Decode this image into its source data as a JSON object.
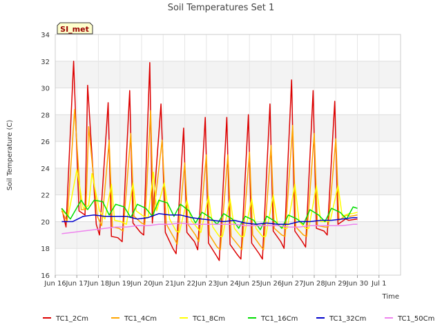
{
  "chart_data": {
    "type": "line",
    "title": "Soil Temperatures Set 1",
    "xlabel": "Time",
    "ylabel": "Soil Temperature (C)",
    "badge": "SI_met",
    "ylim": [
      16,
      34
    ],
    "yticks": [
      16,
      18,
      20,
      22,
      24,
      26,
      28,
      30,
      32,
      34
    ],
    "xlim": [
      15.0,
      31.0
    ],
    "xticks": [
      {
        "x": 15,
        "label": "Jun 16"
      },
      {
        "x": 16,
        "label": "Jun 17"
      },
      {
        "x": 17,
        "label": "Jun 18"
      },
      {
        "x": 18,
        "label": "Jun 19"
      },
      {
        "x": 19,
        "label": "Jun 20"
      },
      {
        "x": 20,
        "label": "Jun 21"
      },
      {
        "x": 21,
        "label": "Jun 22"
      },
      {
        "x": 22,
        "label": "Jun 23"
      },
      {
        "x": 23,
        "label": "Jun 24"
      },
      {
        "x": 24,
        "label": "Jun 25"
      },
      {
        "x": 25,
        "label": "Jun 26"
      },
      {
        "x": 26,
        "label": "Jun 27"
      },
      {
        "x": 27,
        "label": "Jun 28"
      },
      {
        "x": 28,
        "label": "Jun 29"
      },
      {
        "x": 29,
        "label": "Jun 30"
      },
      {
        "x": 30,
        "label": "Jul 1"
      }
    ],
    "grid": true,
    "legend_position": "bottom",
    "series": [
      {
        "name": "TC1_2Cm",
        "color": "#dd0000",
        "x": [
          15.3,
          15.5,
          15.85,
          16.1,
          16.38,
          16.5,
          16.9,
          17.05,
          17.45,
          17.6,
          17.9,
          18.1,
          18.45,
          18.6,
          18.95,
          19.1,
          19.38,
          19.5,
          19.9,
          20.1,
          20.45,
          20.6,
          20.95,
          21.1,
          21.45,
          21.6,
          21.95,
          22.1,
          22.45,
          22.6,
          22.95,
          23.1,
          23.45,
          23.6,
          23.95,
          24.1,
          24.45,
          24.6,
          24.95,
          25.1,
          25.45,
          25.6,
          25.95,
          26.1,
          26.45,
          26.6,
          26.95,
          27.1,
          27.45,
          27.6,
          27.95,
          28.1,
          28.45,
          28.6,
          29.0
        ],
        "y": [
          21.0,
          19.6,
          32.0,
          20.8,
          20.5,
          30.2,
          19.8,
          19.0,
          28.9,
          18.9,
          18.8,
          18.5,
          29.8,
          19.9,
          19.2,
          19.0,
          31.9,
          19.9,
          28.8,
          19.2,
          18.0,
          17.6,
          27.0,
          19.2,
          18.5,
          17.9,
          27.8,
          18.4,
          17.5,
          17.1,
          27.8,
          18.3,
          17.5,
          17.2,
          28.0,
          18.4,
          17.6,
          17.2,
          28.8,
          19.3,
          18.5,
          18.0,
          30.6,
          19.3,
          18.5,
          18.1,
          29.8,
          19.5,
          19.3,
          19.0,
          29.0,
          19.8,
          20.2,
          20.1,
          20.2
        ]
      },
      {
        "name": "TC1_4Cm",
        "color": "#ffa500",
        "x": [
          15.3,
          15.55,
          15.9,
          16.2,
          16.42,
          16.55,
          16.95,
          17.15,
          17.5,
          17.65,
          17.95,
          18.15,
          18.5,
          18.65,
          19.0,
          19.15,
          19.42,
          19.55,
          19.95,
          20.15,
          20.5,
          20.65,
          21.0,
          21.15,
          21.5,
          21.65,
          22.0,
          22.15,
          22.5,
          22.65,
          23.0,
          23.15,
          23.5,
          23.65,
          24.0,
          24.15,
          24.5,
          24.65,
          25.0,
          25.15,
          25.5,
          25.65,
          26.0,
          26.15,
          26.5,
          26.65,
          27.0,
          27.15,
          27.5,
          27.65,
          28.0,
          28.15,
          28.5,
          28.65,
          29.0
        ],
        "y": [
          20.8,
          20.0,
          28.4,
          20.9,
          20.9,
          27.1,
          20.4,
          19.7,
          26.1,
          19.6,
          19.5,
          19.3,
          26.6,
          20.4,
          19.9,
          19.8,
          28.3,
          20.4,
          26.1,
          19.8,
          18.8,
          18.3,
          24.4,
          19.8,
          19.0,
          18.5,
          25.0,
          19.0,
          18.1,
          17.9,
          25.0,
          18.9,
          18.2,
          17.9,
          25.2,
          19.0,
          18.2,
          17.9,
          25.7,
          19.5,
          19.0,
          18.9,
          27.2,
          19.6,
          19.0,
          18.9,
          26.6,
          19.7,
          19.6,
          19.6,
          26.2,
          20.1,
          20.5,
          20.4,
          20.5
        ]
      },
      {
        "name": "TC1_8Cm",
        "color": "#ffff00",
        "x": [
          15.3,
          15.6,
          16.0,
          16.3,
          16.55,
          16.7,
          17.05,
          17.3,
          17.6,
          17.75,
          18.05,
          18.3,
          18.6,
          18.75,
          19.1,
          19.3,
          19.55,
          19.7,
          20.05,
          20.3,
          20.6,
          20.75,
          21.1,
          21.3,
          21.6,
          21.75,
          22.1,
          22.3,
          22.6,
          22.75,
          23.1,
          23.3,
          23.6,
          23.75,
          24.1,
          24.3,
          24.6,
          24.75,
          25.1,
          25.3,
          25.6,
          25.75,
          26.1,
          26.3,
          26.6,
          26.75,
          27.1,
          27.3,
          27.6,
          27.75,
          28.1,
          28.3,
          28.6,
          28.75,
          29.0
        ],
        "y": [
          20.9,
          20.4,
          23.9,
          21.0,
          21.2,
          23.6,
          20.8,
          20.2,
          22.8,
          20.1,
          20.0,
          19.8,
          22.9,
          20.8,
          20.4,
          20.3,
          23.7,
          20.8,
          22.9,
          20.2,
          19.3,
          19.2,
          21.6,
          20.1,
          19.5,
          19.2,
          21.9,
          19.6,
          18.9,
          18.9,
          21.7,
          19.5,
          18.9,
          18.9,
          21.7,
          19.5,
          18.9,
          18.9,
          22.0,
          19.8,
          19.5,
          19.5,
          22.8,
          20.0,
          19.5,
          19.5,
          22.7,
          20.0,
          20.0,
          20.1,
          22.7,
          20.4,
          20.6,
          20.6,
          20.7
        ]
      },
      {
        "name": "TC1_16Cm",
        "color": "#00dd00",
        "x": [
          15.3,
          15.7,
          16.2,
          16.5,
          16.8,
          17.2,
          17.5,
          17.8,
          18.2,
          18.5,
          18.8,
          19.2,
          19.5,
          19.8,
          20.2,
          20.5,
          20.8,
          21.2,
          21.5,
          21.8,
          22.2,
          22.5,
          22.8,
          23.2,
          23.5,
          23.8,
          24.2,
          24.5,
          24.8,
          25.2,
          25.5,
          25.8,
          26.2,
          26.5,
          26.8,
          27.2,
          27.5,
          27.8,
          28.2,
          28.5,
          28.8,
          29.0
        ],
        "y": [
          21.0,
          20.2,
          21.6,
          20.9,
          21.6,
          21.5,
          20.5,
          21.3,
          21.1,
          20.3,
          21.3,
          21.0,
          20.4,
          21.6,
          21.4,
          20.4,
          21.3,
          20.8,
          19.9,
          20.7,
          20.3,
          19.8,
          20.6,
          20.2,
          19.5,
          20.4,
          20.1,
          19.4,
          20.4,
          20.0,
          19.5,
          20.5,
          20.2,
          19.8,
          20.9,
          20.5,
          20.0,
          21.0,
          20.7,
          20.2,
          21.1,
          21.0
        ]
      },
      {
        "name": "TC1_32Cm",
        "color": "#0000cc",
        "x": [
          15.3,
          15.8,
          16.3,
          16.8,
          17.3,
          17.8,
          18.3,
          18.8,
          19.3,
          19.8,
          20.3,
          20.8,
          21.3,
          21.8,
          22.3,
          22.8,
          23.3,
          23.8,
          24.3,
          24.8,
          25.3,
          25.8,
          26.3,
          26.8,
          27.3,
          27.8,
          28.3,
          28.8,
          29.0
        ],
        "y": [
          20.0,
          20.0,
          20.4,
          20.5,
          20.4,
          20.4,
          20.4,
          20.2,
          20.3,
          20.6,
          20.5,
          20.5,
          20.3,
          20.2,
          20.1,
          20.0,
          20.1,
          19.9,
          19.8,
          19.9,
          19.8,
          19.8,
          20.0,
          20.0,
          20.1,
          20.1,
          20.2,
          20.3,
          20.3
        ]
      },
      {
        "name": "TC1_50Cm",
        "color": "#ee82ee",
        "x": [
          15.3,
          15.8,
          16.3,
          16.8,
          17.3,
          17.8,
          18.3,
          18.8,
          19.3,
          19.8,
          20.3,
          20.8,
          21.3,
          21.8,
          22.3,
          22.8,
          23.3,
          23.8,
          24.3,
          24.8,
          25.3,
          25.8,
          26.3,
          26.8,
          27.3,
          27.8,
          28.3,
          28.8,
          29.0
        ],
        "y": [
          19.1,
          19.2,
          19.3,
          19.4,
          19.5,
          19.6,
          19.6,
          19.7,
          19.7,
          19.8,
          19.8,
          19.9,
          19.8,
          19.8,
          19.8,
          19.8,
          19.8,
          19.7,
          19.7,
          19.7,
          19.7,
          19.6,
          19.6,
          19.7,
          19.7,
          19.7,
          19.7,
          19.8,
          19.8
        ]
      }
    ]
  }
}
